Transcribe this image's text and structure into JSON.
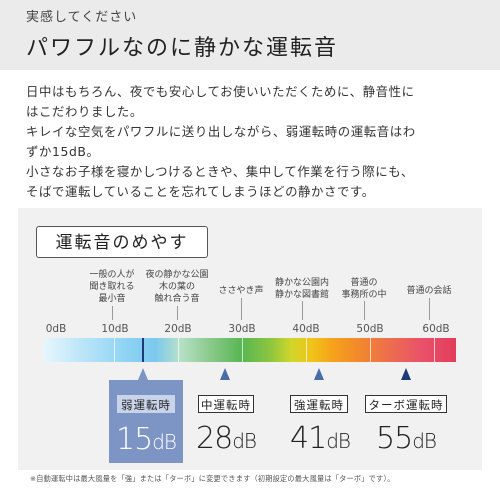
{
  "header": {
    "subtitle": "実感してください",
    "title": "パワフルなのに静かな運転音"
  },
  "body": {
    "lines": [
      "日中はもちろん、夜でも安心してお使いいただくために、静音性に",
      "はこだわりました。",
      "キレイな空気をパワフルに送り出しながら、弱運転時の運転音はわ",
      "ずか15dB。",
      "小さなお子様を寝かしつけるときや、集中して作業を行う際にも、",
      "そばで運転していることを忘れてしまうほどの静かさです。"
    ]
  },
  "panel": {
    "heading": "運転音のめやす",
    "examples": [
      {
        "line1": "一般の人が",
        "line2": "聞き取れる",
        "line3": "最小音"
      },
      {
        "line1": "夜の静かな公園",
        "line2": "木の葉の",
        "line3": "触れ合う音"
      },
      {
        "line1": "ささやき声",
        "line2": "",
        "line3": ""
      },
      {
        "line1": "静かな公園内",
        "line2": "静かな図書館",
        "line3": ""
      },
      {
        "line1": "普通の",
        "line2": "事務所の中",
        "line3": ""
      },
      {
        "line1": "普通の会話",
        "line2": "",
        "line3": ""
      }
    ],
    "scale": [
      "0dB",
      "10dB",
      "20dB",
      "30dB",
      "40dB",
      "50dB",
      "60dB"
    ],
    "modes": [
      {
        "label": "弱運転時",
        "value": "15",
        "unit": "dB",
        "highlight": true
      },
      {
        "label": "中運転時",
        "value": "28",
        "unit": "dB",
        "highlight": false
      },
      {
        "label": "強運転時",
        "value": "41",
        "unit": "dB",
        "highlight": false
      },
      {
        "label": "ターボ運転時",
        "value": "55",
        "unit": "dB",
        "highlight": false
      }
    ],
    "note": "※自動運転中は最大風量を「強」または「ターボ」に変更できます（初期設定の最大風量は「ターボ」です）。"
  },
  "colors": {
    "header_bg": "#ebebeb",
    "panel_bg": "#f1f1f1",
    "highlight": "#7d95c4",
    "arrow": "#4a6aa8"
  }
}
